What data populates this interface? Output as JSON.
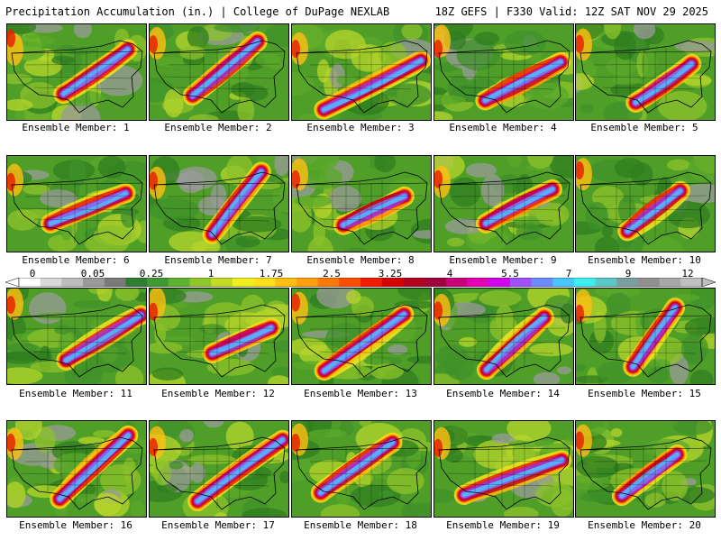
{
  "header": {
    "left_title": "Precipitation Accumulation (in.) | College of DuPage NEXLAB",
    "right_title": "18Z GEFS | F330 Valid: 12Z SAT NOV 29 2025"
  },
  "panels": [
    {
      "label": "Ensemble Member: 1"
    },
    {
      "label": "Ensemble Member: 2"
    },
    {
      "label": "Ensemble Member: 3"
    },
    {
      "label": "Ensemble Member: 4"
    },
    {
      "label": "Ensemble Member: 5"
    },
    {
      "label": "Ensemble Member: 6"
    },
    {
      "label": "Ensemble Member: 7"
    },
    {
      "label": "Ensemble Member: 8"
    },
    {
      "label": "Ensemble Member: 9"
    },
    {
      "label": "Ensemble Member: 10"
    },
    {
      "label": "Ensemble Member: 11"
    },
    {
      "label": "Ensemble Member: 12"
    },
    {
      "label": "Ensemble Member: 13"
    },
    {
      "label": "Ensemble Member: 14"
    },
    {
      "label": "Ensemble Member: 15"
    },
    {
      "label": "Ensemble Member: 16"
    },
    {
      "label": "Ensemble Member: 17"
    },
    {
      "label": "Ensemble Member: 18"
    },
    {
      "label": "Ensemble Member: 19"
    },
    {
      "label": "Ensemble Member: 20"
    }
  ],
  "colorbar": {
    "tick_labels": [
      "0",
      "0.05",
      "0.25",
      "1",
      "1.75",
      "2.5",
      "3.25",
      "4",
      "5.5",
      "7",
      "9",
      "12"
    ],
    "colors": [
      "#ffffff",
      "#d9d9d9",
      "#bdbdbd",
      "#9a9a9a",
      "#7a7a7a",
      "#2e7d32",
      "#3f9a34",
      "#5fb22f",
      "#8fc72a",
      "#c3dc23",
      "#f0f01e",
      "#ffe01a",
      "#ffbf10",
      "#ff9f0a",
      "#ff7a05",
      "#ff4d00",
      "#f21c00",
      "#d40000",
      "#b4001e",
      "#a0003c",
      "#c8007a",
      "#e600b4",
      "#d200f0",
      "#a050ff",
      "#6a8cff",
      "#46c8ff",
      "#3cf0f0",
      "#5ac8c8",
      "#78a0a0",
      "#909090",
      "#a8a8a8",
      "#c0c0c0"
    ]
  }
}
